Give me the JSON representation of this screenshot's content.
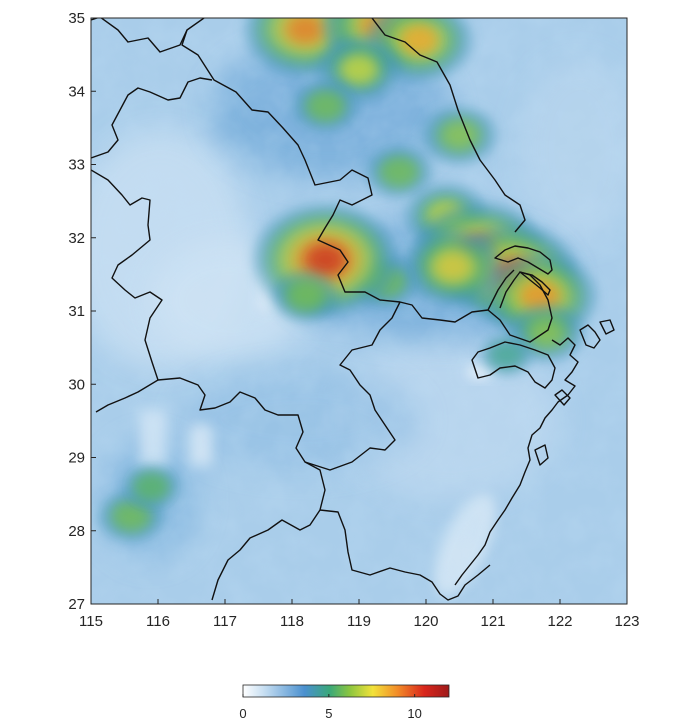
{
  "map": {
    "x_ticks": [
      "115",
      "116",
      "117",
      "118",
      "119",
      "120",
      "121",
      "122",
      "123"
    ],
    "y_ticks": [
      "35",
      "34",
      "33",
      "32",
      "31",
      "30",
      "29",
      "28",
      "27"
    ],
    "lon_range": [
      115,
      123
    ],
    "lat_range": [
      27,
      35
    ],
    "hotspots": [
      {
        "lon": 118.2,
        "lat": 34.85,
        "value": 9.5
      },
      {
        "lon": 119.3,
        "lat": 34.9,
        "value": 9
      },
      {
        "lon": 119.9,
        "lat": 34.7,
        "value": 8.5
      },
      {
        "lon": 119.0,
        "lat": 34.3,
        "value": 7
      },
      {
        "lon": 118.5,
        "lat": 33.8,
        "value": 6
      },
      {
        "lon": 120.5,
        "lat": 33.4,
        "value": 6.5
      },
      {
        "lon": 119.6,
        "lat": 32.9,
        "value": 6
      },
      {
        "lon": 120.3,
        "lat": 32.3,
        "value": 7
      },
      {
        "lon": 120.8,
        "lat": 31.8,
        "value": 10
      },
      {
        "lon": 121.3,
        "lat": 31.5,
        "value": 10
      },
      {
        "lon": 121.7,
        "lat": 31.2,
        "value": 9
      },
      {
        "lon": 120.4,
        "lat": 31.6,
        "value": 8
      },
      {
        "lon": 119.4,
        "lat": 31.4,
        "value": 6
      },
      {
        "lon": 118.5,
        "lat": 31.7,
        "value": 11
      },
      {
        "lon": 118.2,
        "lat": 31.2,
        "value": 6
      },
      {
        "lon": 121.8,
        "lat": 30.7,
        "value": 6.5
      },
      {
        "lon": 121.2,
        "lat": 30.4,
        "value": 5
      },
      {
        "lon": 115.6,
        "lat": 28.2,
        "value": 6
      },
      {
        "lon": 115.9,
        "lat": 28.6,
        "value": 5.5
      }
    ]
  },
  "colorbar": {
    "labels": [
      "0",
      "5",
      "10"
    ],
    "range": [
      0,
      12
    ],
    "stops": [
      "#ffffff",
      "#c8dff2",
      "#4a90cf",
      "#3aa87a",
      "#8dc63f",
      "#f2e23a",
      "#f28c28",
      "#d9261c",
      "#9e1a1a"
    ]
  }
}
